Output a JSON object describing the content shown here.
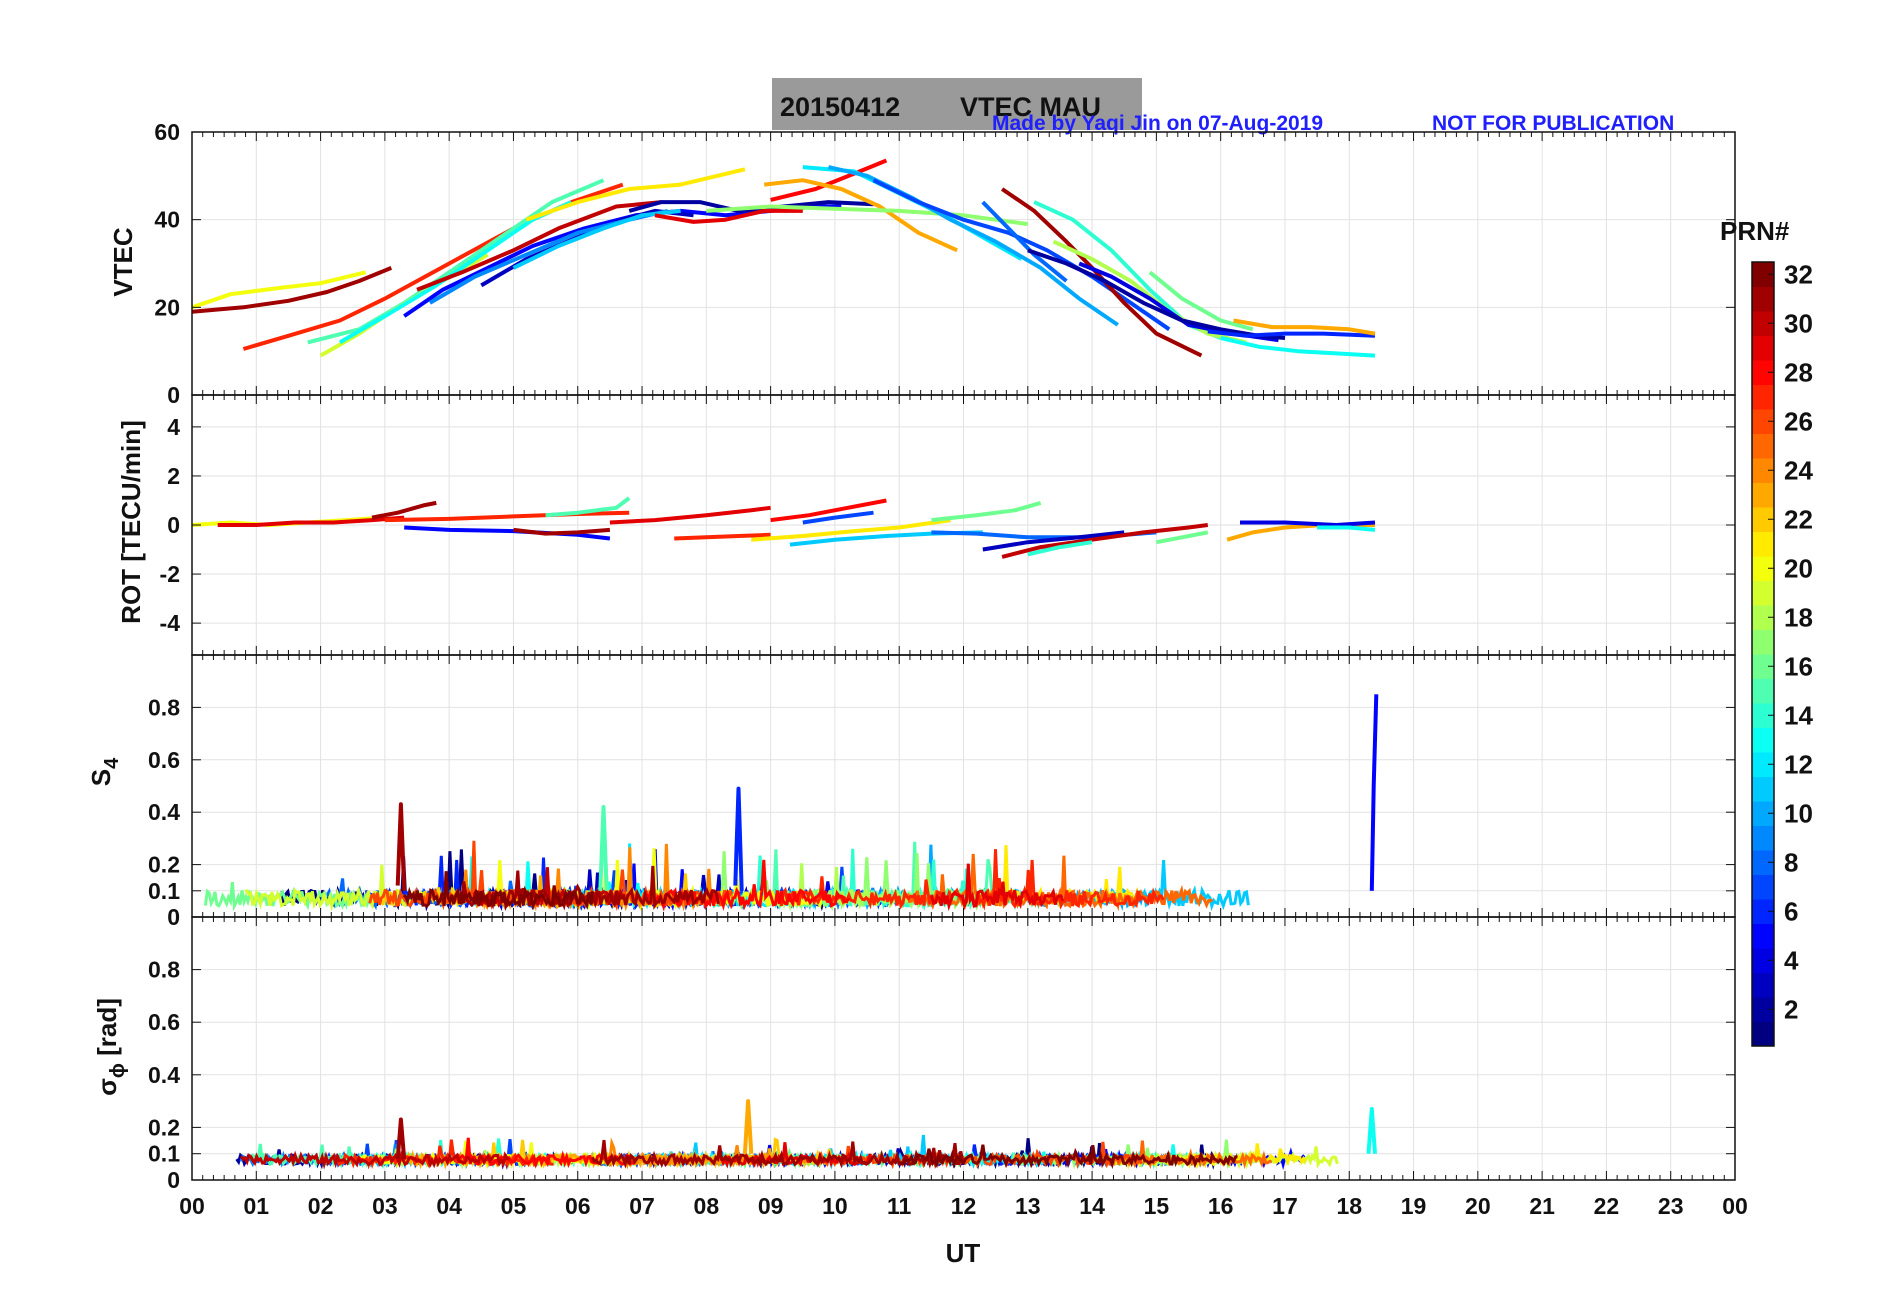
{
  "banner": {
    "date": "20150412",
    "title": "VTEC  MAU"
  },
  "credit": {
    "author": "Made by Yaqi Jin on 07-Aug-2019",
    "notice": "NOT FOR PUBLICATION"
  },
  "colors": {
    "credit": "#1f1fff",
    "banner_bg": "#9a9a9a",
    "grid": "#e2e2e2"
  },
  "colorbar": {
    "label": "PRN#",
    "min": 1,
    "max": 32,
    "colormap": "jet",
    "ticks": [
      "2",
      "4",
      "6",
      "8",
      "10",
      "12",
      "14",
      "16",
      "18",
      "20",
      "22",
      "24",
      "26",
      "28",
      "30",
      "32"
    ]
  },
  "chart_data": [
    {
      "type": "line",
      "id": "vtec",
      "ylabel": "VTEC",
      "ylim": [
        0,
        60
      ],
      "yticks": [
        "0",
        "20",
        "40",
        "60"
      ],
      "grid": true,
      "series": [
        {
          "prn": 31,
          "t": [
            0.0,
            0.8,
            1.5,
            2.1,
            2.6,
            3.1
          ],
          "y": [
            19,
            20,
            21.5,
            23.5,
            26,
            29
          ]
        },
        {
          "prn": 20,
          "t": [
            0.0,
            0.6,
            1.4,
            2.0,
            2.7
          ],
          "y": [
            20,
            23,
            24.5,
            25.5,
            28
          ]
        },
        {
          "prn": 27,
          "t": [
            0.8,
            1.5,
            2.3,
            3.0,
            4.0,
            5.0,
            5.9,
            6.7
          ],
          "y": [
            10.5,
            13.5,
            17,
            22,
            30,
            38,
            44,
            48
          ]
        },
        {
          "prn": 15,
          "t": [
            1.8,
            2.6,
            3.3,
            4.1,
            4.9,
            5.6,
            6.4
          ],
          "y": [
            12,
            15,
            21,
            29,
            37,
            44,
            49
          ]
        },
        {
          "prn": 19,
          "t": [
            2.0,
            2.6,
            3.1,
            3.9,
            4.6
          ],
          "y": [
            9,
            14,
            19,
            26,
            32
          ]
        },
        {
          "prn": 13,
          "t": [
            2.3,
            3.0,
            3.8,
            4.6,
            5.3,
            5.9
          ],
          "y": [
            12,
            18,
            25,
            33,
            40,
            44
          ]
        },
        {
          "prn": 30,
          "t": [
            3.5,
            4.2,
            5.0,
            5.7,
            6.6,
            7.3
          ],
          "y": [
            24,
            28,
            33,
            38,
            43,
            44
          ]
        },
        {
          "prn": 21,
          "t": [
            5.2,
            6.0,
            6.8,
            7.6,
            8.6
          ],
          "y": [
            40,
            44,
            47,
            48,
            51.5
          ]
        },
        {
          "prn": 5,
          "t": [
            3.3,
            3.9,
            4.6,
            5.3,
            6.1,
            6.9,
            7.6,
            8.3,
            9.0,
            9.7,
            10.1
          ],
          "y": [
            18,
            24,
            29,
            34,
            38,
            41,
            42,
            41,
            42,
            43,
            43
          ]
        },
        {
          "prn": 3,
          "t": [
            4.5,
            5.2,
            6.0,
            6.7,
            7.2,
            7.8
          ],
          "y": [
            25,
            31,
            36,
            40,
            42,
            41
          ]
        },
        {
          "prn": 2,
          "t": [
            6.8,
            7.3,
            7.9,
            8.5,
            9.2,
            9.9,
            10.6
          ],
          "y": [
            42,
            44,
            44,
            42,
            43,
            44,
            43.5
          ]
        },
        {
          "prn": 9,
          "t": [
            3.7,
            4.4,
            5.2,
            6.0,
            6.8,
            7.4
          ],
          "y": [
            21,
            27,
            32,
            37,
            40,
            42
          ]
        },
        {
          "prn": 11,
          "t": [
            5.0,
            5.7,
            6.4,
            7.0,
            7.6
          ],
          "y": [
            29,
            34,
            38,
            41,
            42
          ]
        },
        {
          "prn": 29,
          "t": [
            7.2,
            7.8,
            8.3,
            8.9,
            9.5
          ],
          "y": [
            41,
            39.5,
            40,
            42,
            42
          ]
        },
        {
          "prn": 28,
          "t": [
            9.0,
            9.7,
            10.3,
            10.8
          ],
          "y": [
            44.5,
            47,
            50.5,
            53.5
          ]
        },
        {
          "prn": 23,
          "t": [
            8.9,
            9.5,
            10.1,
            10.7,
            11.3,
            11.9
          ],
          "y": [
            48,
            49,
            47,
            43,
            37,
            33
          ]
        },
        {
          "prn": 17,
          "t": [
            8.0,
            9.0,
            10.0,
            11.0,
            12.0,
            13.0
          ],
          "y": [
            42,
            43,
            42.5,
            42,
            41,
            39
          ]
        },
        {
          "prn": 12,
          "t": [
            9.5,
            10.3,
            11.0,
            11.7,
            12.3,
            12.9
          ],
          "y": [
            52,
            51,
            46,
            41,
            36,
            31
          ]
        },
        {
          "prn": 10,
          "t": [
            9.9,
            10.5,
            11.2,
            11.8,
            12.5,
            13.2,
            13.8,
            14.4
          ],
          "y": [
            52,
            50,
            45,
            40,
            35,
            29,
            22,
            16
          ]
        },
        {
          "prn": 7,
          "t": [
            10.6,
            11.3,
            12.0,
            12.7,
            13.3,
            14.0,
            14.6,
            15.2
          ],
          "y": [
            49,
            44,
            40,
            37,
            33,
            27,
            21,
            15
          ]
        },
        {
          "prn": 8,
          "t": [
            12.3,
            12.7,
            13.1,
            13.6
          ],
          "y": [
            44,
            38,
            32,
            26
          ]
        },
        {
          "prn": 31,
          "t": [
            12.6,
            13.1,
            13.6,
            14.0,
            14.5,
            15.0,
            15.7
          ],
          "y": [
            47,
            42,
            35,
            29,
            21,
            14,
            9
          ]
        },
        {
          "prn": 14,
          "t": [
            13.1,
            13.7,
            14.3,
            14.9,
            15.5,
            16.0
          ],
          "y": [
            44,
            40,
            33,
            24,
            16,
            13
          ]
        },
        {
          "prn": 18,
          "t": [
            13.4,
            14.0,
            14.6,
            15.2,
            15.8,
            16.4
          ],
          "y": [
            35,
            31,
            26,
            19,
            14,
            12
          ]
        },
        {
          "prn": 4,
          "t": [
            13.8,
            14.3,
            14.9,
            15.5,
            16.2,
            16.9
          ],
          "y": [
            30,
            27,
            22,
            16,
            14,
            12.5
          ]
        },
        {
          "prn": 2,
          "t": [
            13.0,
            13.6,
            14.2,
            14.8,
            15.4,
            16.0,
            16.6,
            17.0
          ],
          "y": [
            33,
            30,
            26,
            21,
            17,
            15,
            13.5,
            13
          ]
        },
        {
          "prn": 16,
          "t": [
            14.9,
            15.4,
            16.0,
            16.5
          ],
          "y": [
            28,
            22,
            17,
            15
          ]
        },
        {
          "prn": 6,
          "t": [
            15.8,
            16.4,
            17.0,
            17.6,
            18.4
          ],
          "y": [
            14.5,
            13.5,
            14,
            14,
            13.5
          ]
        },
        {
          "prn": 23,
          "t": [
            16.2,
            16.8,
            17.4,
            18.0,
            18.4
          ],
          "y": [
            17,
            15.5,
            15.5,
            15,
            14
          ]
        },
        {
          "prn": 13,
          "t": [
            16.0,
            16.6,
            17.2,
            17.8,
            18.4
          ],
          "y": [
            13,
            11,
            10,
            9.5,
            9
          ]
        }
      ]
    },
    {
      "type": "line",
      "id": "rot",
      "ylabel": "ROT [TECU/min]",
      "ylim": [
        -5.3,
        5.3
      ],
      "yticks": [
        "-4",
        "-2",
        "0",
        "2",
        "4"
      ],
      "grid": true,
      "series": [
        {
          "prn": 20,
          "t": [
            0.0,
            0.6,
            1.2,
            1.8,
            2.4,
            3.0
          ],
          "y": [
            0,
            0.1,
            0,
            0.1,
            0.2,
            0.3
          ]
        },
        {
          "prn": 29,
          "t": [
            0.4,
            1.0,
            1.6,
            2.2,
            2.8,
            3.3
          ],
          "y": [
            0,
            0,
            0.1,
            0.1,
            0.2,
            0.3
          ]
        },
        {
          "prn": 31,
          "t": [
            2.8,
            3.2,
            3.6,
            3.8
          ],
          "y": [
            0.3,
            0.5,
            0.8,
            0.9
          ]
        },
        {
          "prn": 27,
          "t": [
            3.0,
            4.0,
            5.0,
            6.0,
            6.8
          ],
          "y": [
            0.2,
            0.25,
            0.35,
            0.45,
            0.5
          ]
        },
        {
          "prn": 15,
          "t": [
            5.5,
            6.0,
            6.6,
            6.8
          ],
          "y": [
            0.4,
            0.5,
            0.7,
            1.1
          ]
        },
        {
          "prn": 5,
          "t": [
            3.3,
            4.0,
            5.0,
            6.0,
            6.5
          ],
          "y": [
            -0.1,
            -0.2,
            -0.25,
            -0.4,
            -0.55
          ]
        },
        {
          "prn": 31,
          "t": [
            5.0,
            5.5,
            6.0,
            6.5
          ],
          "y": [
            -0.2,
            -0.35,
            -0.3,
            -0.2
          ]
        },
        {
          "prn": 29,
          "t": [
            6.5,
            7.2,
            8.0,
            8.7,
            9.0
          ],
          "y": [
            0.1,
            0.2,
            0.4,
            0.6,
            0.7
          ]
        },
        {
          "prn": 27,
          "t": [
            7.5,
            8.0,
            8.5,
            9.0
          ],
          "y": [
            -0.55,
            -0.5,
            -0.45,
            -0.4
          ]
        },
        {
          "prn": 28,
          "t": [
            9.0,
            9.6,
            10.2,
            10.8
          ],
          "y": [
            0.2,
            0.4,
            0.7,
            1.0
          ]
        },
        {
          "prn": 7,
          "t": [
            9.5,
            10.0,
            10.6
          ],
          "y": [
            0.1,
            0.3,
            0.5
          ]
        },
        {
          "prn": 21,
          "t": [
            8.7,
            9.5,
            10.3,
            11.0,
            11.8
          ],
          "y": [
            -0.6,
            -0.45,
            -0.25,
            -0.1,
            0.2
          ]
        },
        {
          "prn": 11,
          "t": [
            9.3,
            10.0,
            10.8,
            11.5,
            12.3
          ],
          "y": [
            -0.8,
            -0.6,
            -0.45,
            -0.35,
            -0.3
          ]
        },
        {
          "prn": 16,
          "t": [
            11.5,
            12.2,
            12.8,
            13.2
          ],
          "y": [
            0.2,
            0.4,
            0.6,
            0.9
          ]
        },
        {
          "prn": 8,
          "t": [
            11.5,
            12.2,
            13.0,
            14.0,
            15.0
          ],
          "y": [
            -0.3,
            -0.35,
            -0.5,
            -0.5,
            -0.3
          ]
        },
        {
          "prn": 3,
          "t": [
            12.3,
            13.0,
            13.8,
            14.5
          ],
          "y": [
            -1.0,
            -0.7,
            -0.5,
            -0.3
          ]
        },
        {
          "prn": 30,
          "t": [
            12.6,
            13.2,
            14.0,
            14.8,
            15.5,
            15.8
          ],
          "y": [
            -1.3,
            -0.9,
            -0.6,
            -0.3,
            -0.1,
            0.0
          ]
        },
        {
          "prn": 14,
          "t": [
            13.0,
            13.5,
            14.0
          ],
          "y": [
            -1.2,
            -0.9,
            -0.7
          ]
        },
        {
          "prn": 16,
          "t": [
            15.0,
            15.4,
            15.8
          ],
          "y": [
            -0.7,
            -0.5,
            -0.3
          ]
        },
        {
          "prn": 23,
          "t": [
            16.1,
            16.5,
            17.0,
            17.6,
            18.4
          ],
          "y": [
            -0.6,
            -0.3,
            -0.1,
            0,
            0
          ]
        },
        {
          "prn": 4,
          "t": [
            16.3,
            17.0,
            17.8,
            18.4
          ],
          "y": [
            0.1,
            0.1,
            0,
            0.1
          ]
        },
        {
          "prn": 13,
          "t": [
            17.5,
            18.0,
            18.4
          ],
          "y": [
            -0.1,
            -0.1,
            -0.2
          ]
        }
      ]
    },
    {
      "type": "line",
      "id": "s4",
      "ylabel": "S4",
      "ylim": [
        0,
        1.0
      ],
      "yticks": [
        "0",
        "0.1",
        "0.2",
        "0.4",
        "0.6",
        "0.8"
      ],
      "grid": true,
      "series": [
        {
          "prn": 5,
          "t": [
            18.35,
            18.38,
            18.42
          ],
          "y": [
            0.1,
            0.5,
            0.85
          ]
        },
        {
          "prn": 6,
          "t": [
            8.45,
            8.5,
            8.55
          ],
          "y": [
            0.12,
            0.49,
            0.1
          ]
        },
        {
          "prn": 31,
          "t": [
            3.2,
            3.25,
            3.3
          ],
          "y": [
            0.12,
            0.43,
            0.1
          ]
        },
        {
          "prn": 15,
          "t": [
            6.35,
            6.4,
            6.45
          ],
          "y": [
            0.1,
            0.42,
            0.1
          ]
        }
      ]
    },
    {
      "type": "line",
      "id": "sigma",
      "ylabel": "σ ϕ [rad]",
      "ylim": [
        0,
        1.0
      ],
      "yticks": [
        "0",
        "0.1",
        "0.2",
        "0.4",
        "0.6",
        "0.8"
      ],
      "xlabel": "UT",
      "xticks": [
        "00",
        "01",
        "02",
        "03",
        "04",
        "05",
        "06",
        "07",
        "08",
        "09",
        "10",
        "11",
        "12",
        "13",
        "14",
        "15",
        "16",
        "17",
        "18",
        "19",
        "20",
        "21",
        "22",
        "23",
        "00"
      ],
      "grid": true,
      "series": [
        {
          "prn": 23,
          "t": [
            8.6,
            8.65,
            8.7
          ],
          "y": [
            0.1,
            0.3,
            0.1
          ]
        },
        {
          "prn": 13,
          "t": [
            18.3,
            18.35,
            18.4
          ],
          "y": [
            0.1,
            0.27,
            0.1
          ]
        },
        {
          "prn": 31,
          "t": [
            3.2,
            3.25,
            3.3
          ],
          "y": [
            0.08,
            0.23,
            0.08
          ]
        }
      ]
    }
  ]
}
